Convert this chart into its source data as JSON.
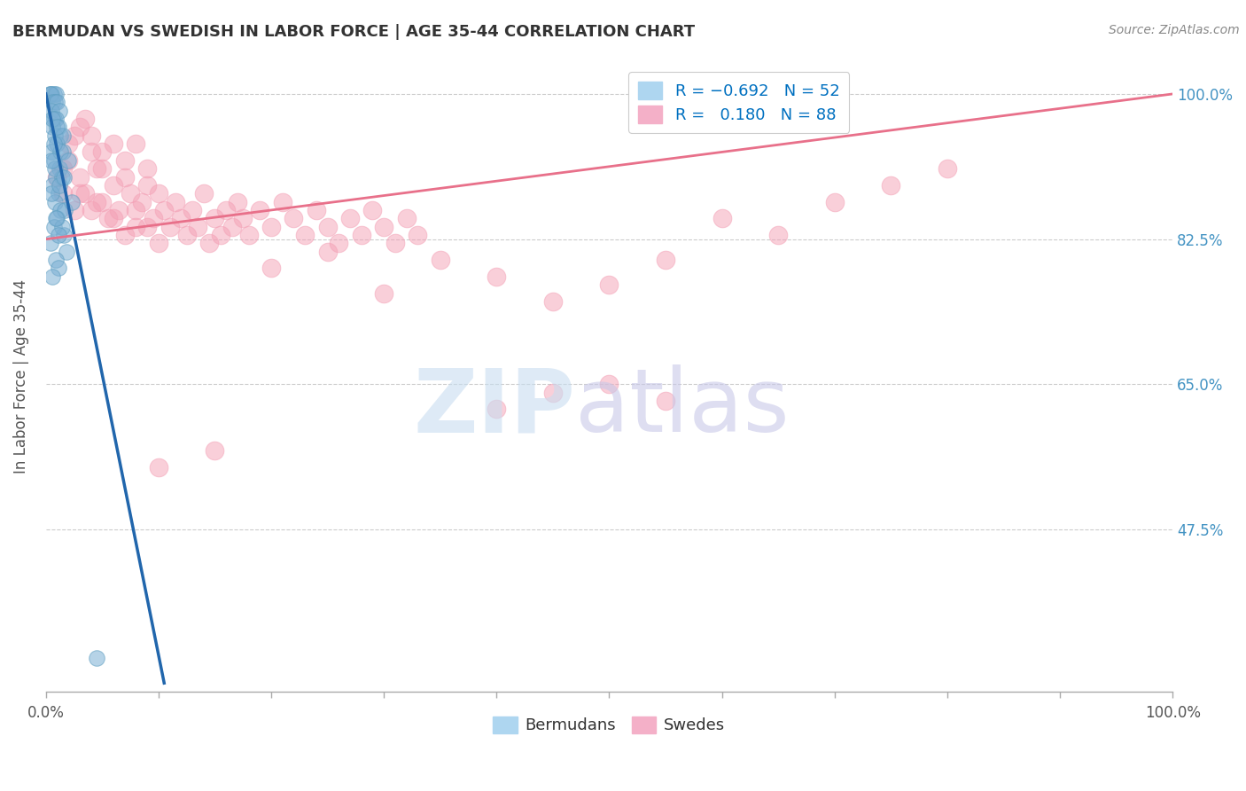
{
  "title": "BERMUDAN VS SWEDISH IN LABOR FORCE | AGE 35-44 CORRELATION CHART",
  "source": "Source: ZipAtlas.com",
  "ylabel": "In Labor Force | Age 35-44",
  "xlim": [
    0,
    100
  ],
  "ylim": [
    28,
    104
  ],
  "ytick_labels": [
    "47.5%",
    "65.0%",
    "82.5%",
    "100.0%"
  ],
  "ytick_values": [
    47.5,
    65.0,
    82.5,
    100.0
  ],
  "xtick_values": [
    0,
    10,
    20,
    30,
    40,
    50,
    60,
    70,
    80,
    90,
    100
  ],
  "blue_color": "#7bafd4",
  "blue_edge_color": "#5b9dc0",
  "pink_color": "#f4a0b5",
  "pink_edge_color": "#e8809a",
  "blue_line_color": "#2166ac",
  "pink_line_color": "#e8708a",
  "background_color": "#ffffff",
  "grid_color": "#cccccc",
  "title_color": "#333333",
  "right_label_color": "#4393c3",
  "axis_color": "#aaaaaa",
  "bermudan_points": [
    [
      0.3,
      100
    ],
    [
      0.5,
      100
    ],
    [
      0.7,
      100
    ],
    [
      0.9,
      100
    ],
    [
      0.4,
      100
    ],
    [
      0.6,
      99
    ],
    [
      0.8,
      99
    ],
    [
      1.0,
      99
    ],
    [
      0.5,
      98
    ],
    [
      1.2,
      98
    ],
    [
      0.7,
      97
    ],
    [
      0.9,
      97
    ],
    [
      1.1,
      96
    ],
    [
      0.6,
      96
    ],
    [
      1.3,
      95
    ],
    [
      0.8,
      95
    ],
    [
      1.0,
      94
    ],
    [
      0.5,
      93
    ],
    [
      1.5,
      93
    ],
    [
      0.7,
      92
    ],
    [
      1.2,
      91
    ],
    [
      0.9,
      90
    ],
    [
      1.4,
      90
    ],
    [
      0.6,
      89
    ],
    [
      1.1,
      88
    ],
    [
      0.8,
      87
    ],
    [
      1.3,
      86
    ],
    [
      1.0,
      85
    ],
    [
      0.7,
      84
    ],
    [
      1.6,
      83
    ],
    [
      0.4,
      82
    ],
    [
      1.8,
      81
    ],
    [
      0.9,
      80
    ],
    [
      1.1,
      79
    ],
    [
      0.6,
      78
    ],
    [
      1.4,
      84
    ],
    [
      0.5,
      88
    ],
    [
      1.7,
      86
    ],
    [
      0.8,
      91
    ],
    [
      1.3,
      93
    ],
    [
      2.0,
      92
    ],
    [
      1.5,
      95
    ],
    [
      0.6,
      97
    ],
    [
      1.0,
      96
    ],
    [
      0.7,
      94
    ],
    [
      1.2,
      89
    ],
    [
      0.9,
      85
    ],
    [
      2.3,
      87
    ],
    [
      1.6,
      90
    ],
    [
      0.5,
      92
    ],
    [
      4.5,
      32
    ],
    [
      1.1,
      83
    ]
  ],
  "swedish_points": [
    [
      1.0,
      90
    ],
    [
      1.5,
      88
    ],
    [
      2.0,
      92
    ],
    [
      2.5,
      86
    ],
    [
      3.0,
      90
    ],
    [
      3.5,
      88
    ],
    [
      4.0,
      93
    ],
    [
      4.5,
      87
    ],
    [
      5.0,
      91
    ],
    [
      5.5,
      85
    ],
    [
      6.0,
      89
    ],
    [
      6.5,
      86
    ],
    [
      7.0,
      90
    ],
    [
      7.5,
      88
    ],
    [
      8.0,
      84
    ],
    [
      8.5,
      87
    ],
    [
      9.0,
      89
    ],
    [
      9.5,
      85
    ],
    [
      10.0,
      88
    ],
    [
      10.5,
      86
    ],
    [
      11.0,
      84
    ],
    [
      11.5,
      87
    ],
    [
      12.0,
      85
    ],
    [
      12.5,
      83
    ],
    [
      13.0,
      86
    ],
    [
      13.5,
      84
    ],
    [
      14.0,
      88
    ],
    [
      14.5,
      82
    ],
    [
      15.0,
      85
    ],
    [
      15.5,
      83
    ],
    [
      16.0,
      86
    ],
    [
      16.5,
      84
    ],
    [
      17.0,
      87
    ],
    [
      17.5,
      85
    ],
    [
      18.0,
      83
    ],
    [
      19.0,
      86
    ],
    [
      20.0,
      84
    ],
    [
      21.0,
      87
    ],
    [
      22.0,
      85
    ],
    [
      23.0,
      83
    ],
    [
      24.0,
      86
    ],
    [
      25.0,
      84
    ],
    [
      26.0,
      82
    ],
    [
      27.0,
      85
    ],
    [
      28.0,
      83
    ],
    [
      29.0,
      86
    ],
    [
      30.0,
      84
    ],
    [
      31.0,
      82
    ],
    [
      32.0,
      85
    ],
    [
      33.0,
      83
    ],
    [
      3.0,
      96
    ],
    [
      4.0,
      95
    ],
    [
      5.0,
      93
    ],
    [
      4.5,
      91
    ],
    [
      6.0,
      94
    ],
    [
      3.5,
      97
    ],
    [
      2.5,
      95
    ],
    [
      7.0,
      92
    ],
    [
      8.0,
      94
    ],
    [
      9.0,
      91
    ],
    [
      1.5,
      91
    ],
    [
      2.0,
      94
    ],
    [
      3.0,
      88
    ],
    [
      4.0,
      86
    ],
    [
      5.0,
      87
    ],
    [
      6.0,
      85
    ],
    [
      7.0,
      83
    ],
    [
      8.0,
      86
    ],
    [
      9.0,
      84
    ],
    [
      10.0,
      82
    ],
    [
      35.0,
      80
    ],
    [
      40.0,
      78
    ],
    [
      45.0,
      75
    ],
    [
      50.0,
      77
    ],
    [
      55.0,
      63
    ],
    [
      30.0,
      76
    ],
    [
      25.0,
      81
    ],
    [
      20.0,
      79
    ],
    [
      15.0,
      57
    ],
    [
      10.0,
      55
    ],
    [
      40.0,
      62
    ],
    [
      45.0,
      64
    ],
    [
      50.0,
      65
    ],
    [
      55.0,
      80
    ],
    [
      60.0,
      85
    ],
    [
      65.0,
      83
    ],
    [
      70.0,
      87
    ],
    [
      75.0,
      89
    ],
    [
      80.0,
      91
    ]
  ],
  "blue_line_x": [
    0,
    10.5
  ],
  "blue_line_y": [
    100,
    29
  ],
  "pink_line_x": [
    0,
    100
  ],
  "pink_line_y": [
    82.5,
    100
  ]
}
